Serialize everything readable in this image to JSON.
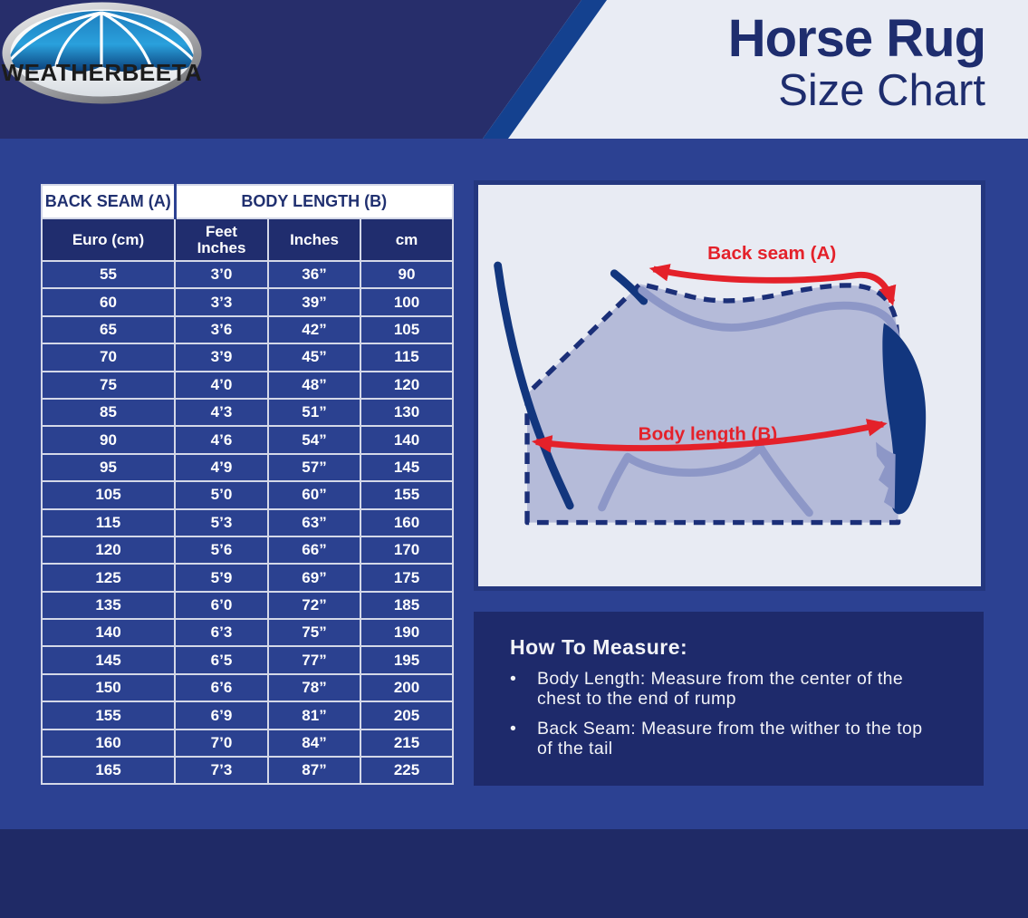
{
  "header": {
    "logo_text": "WEATHERBEETA",
    "title_line1": "Horse Rug",
    "title_line2": "Size Chart"
  },
  "size_table": {
    "group_headers": [
      {
        "label": "BACK SEAM (A)",
        "colspan": 1
      },
      {
        "label": "BODY LENGTH (B)",
        "colspan": 3
      }
    ],
    "columns": [
      "Euro (cm)",
      "Feet\nInches",
      "Inches",
      "cm"
    ],
    "rows": [
      [
        "55",
        "3’0",
        "36”",
        "90"
      ],
      [
        "60",
        "3’3",
        "39”",
        "100"
      ],
      [
        "65",
        "3’6",
        "42”",
        "105"
      ],
      [
        "70",
        "3’9",
        "45”",
        "115"
      ],
      [
        "75",
        "4’0",
        "48”",
        "120"
      ],
      [
        "85",
        "4’3",
        "51”",
        "130"
      ],
      [
        "90",
        "4’6",
        "54”",
        "140"
      ],
      [
        "95",
        "4’9",
        "57”",
        "145"
      ],
      [
        "105",
        "5’0",
        "60”",
        "155"
      ],
      [
        "115",
        "5’3",
        "63”",
        "160"
      ],
      [
        "120",
        "5’6",
        "66”",
        "170"
      ],
      [
        "125",
        "5’9",
        "69”",
        "175"
      ],
      [
        "135",
        "6’0",
        "72”",
        "185"
      ],
      [
        "140",
        "6’3",
        "75”",
        "190"
      ],
      [
        "145",
        "6’5",
        "77”",
        "195"
      ],
      [
        "150",
        "6’6",
        "78”",
        "200"
      ],
      [
        "155",
        "6’9",
        "81”",
        "205"
      ],
      [
        "160",
        "7’0",
        "84”",
        "215"
      ],
      [
        "165",
        "7’3",
        "87”",
        "225"
      ]
    ]
  },
  "diagram": {
    "back_seam_label": "Back seam (A)",
    "body_length_label": "Body length (B)"
  },
  "how_to_measure": {
    "title": "How To Measure:",
    "bullets": [
      "Body Length: Measure from the center of the chest to the end of rump",
      "Back Seam: Measure from the wither to the top of the tail"
    ]
  },
  "colors": {
    "header_navy": "#272e6b",
    "body_blue": "#2c4192",
    "diagonal_stripe_blue": "#14418f",
    "light_panel": "#e9ecf4",
    "footer_navy": "#1f2a66",
    "howto_navy": "#1e2a6b",
    "table_row_blue": "#2b4190",
    "table_subheader_navy": "#202d6e",
    "table_border": "#d4d8e8",
    "title_navy": "#1e2d6e",
    "accent_red": "#e4212a",
    "rug_fill": "#b5bbd9",
    "horse_line_periwinkle": "#8d97c7",
    "horse_line_navy": "#12367e"
  }
}
